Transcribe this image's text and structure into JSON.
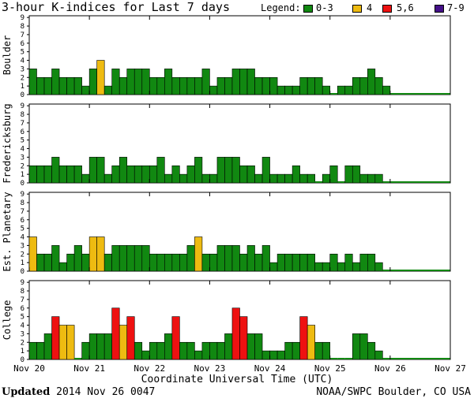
{
  "title": "3-hour K-indices for Last 7 days",
  "legend": {
    "label": "Legend:",
    "items": [
      {
        "label": "0-3",
        "color": "#118811"
      },
      {
        "label": "4",
        "color": "#eebb11"
      },
      {
        "label": "5,6",
        "color": "#ee1111"
      },
      {
        "label": "7-9",
        "color": "#441188"
      }
    ]
  },
  "footer": {
    "updated_label": "Updated",
    "updated_value": "2014 Nov 26 0047",
    "source": "NOAA/SWPC Boulder, CO USA"
  },
  "chart_data": {
    "type": "bar",
    "xlabel": "Coordinate Universal Time (UTC)",
    "x_ticks": [
      "Nov 20",
      "Nov 21",
      "Nov 22",
      "Nov 23",
      "Nov 24",
      "Nov 25",
      "Nov 26",
      "Nov 27"
    ],
    "ylim": [
      0,
      9
    ],
    "y_ticks": [
      "0",
      "1",
      "2",
      "3",
      "4",
      "5",
      "6",
      "7",
      "8",
      "9"
    ],
    "intervals_per_day": 8,
    "color_scale": {
      "0-3": "#118811",
      "4": "#eebb11",
      "5,6": "#ee1111",
      "7-9": "#441188"
    },
    "panels": [
      {
        "name": "Boulder",
        "values": [
          3,
          2,
          2,
          3,
          2,
          2,
          2,
          1,
          3,
          4,
          1,
          3,
          2,
          3,
          3,
          3,
          2,
          2,
          3,
          2,
          2,
          2,
          2,
          3,
          1,
          2,
          2,
          3,
          3,
          3,
          2,
          2,
          2,
          1,
          1,
          1,
          2,
          2,
          2,
          1,
          0,
          1,
          1,
          2,
          2,
          3,
          2,
          1
        ]
      },
      {
        "name": "Fredericksburg",
        "values": [
          2,
          2,
          2,
          3,
          2,
          2,
          2,
          1,
          3,
          3,
          1,
          2,
          3,
          2,
          2,
          2,
          2,
          3,
          1,
          2,
          1,
          2,
          3,
          1,
          1,
          3,
          3,
          3,
          2,
          2,
          1,
          3,
          1,
          1,
          1,
          2,
          1,
          1,
          0,
          1,
          2,
          0,
          2,
          2,
          1,
          1,
          1,
          0
        ]
      },
      {
        "name": "Est. Planetary",
        "values": [
          4,
          2,
          2,
          3,
          1,
          2,
          3,
          2,
          4,
          4,
          2,
          3,
          3,
          3,
          3,
          3,
          2,
          2,
          2,
          2,
          2,
          3,
          4,
          2,
          2,
          3,
          3,
          3,
          2,
          3,
          2,
          3,
          1,
          2,
          2,
          2,
          2,
          2,
          1,
          1,
          2,
          1,
          2,
          1,
          2,
          2,
          1,
          0
        ]
      },
      {
        "name": "College",
        "values": [
          2,
          2,
          3,
          5,
          4,
          4,
          0,
          2,
          3,
          3,
          3,
          6,
          4,
          5,
          2,
          1,
          2,
          2,
          3,
          5,
          2,
          2,
          1,
          2,
          2,
          2,
          3,
          6,
          5,
          3,
          3,
          1,
          1,
          1,
          2,
          2,
          5,
          4,
          2,
          2,
          0,
          0,
          0,
          3,
          3,
          2,
          1,
          0
        ]
      }
    ]
  }
}
